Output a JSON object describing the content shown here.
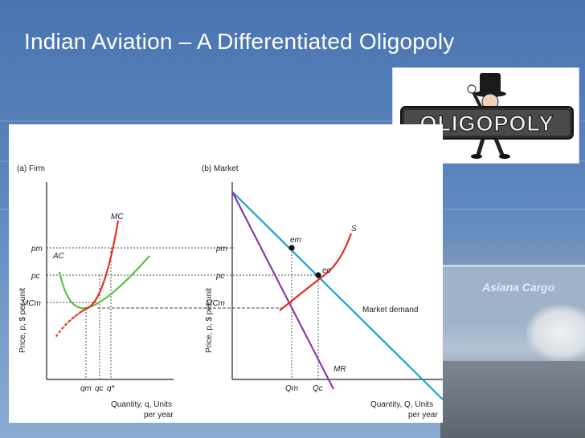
{
  "slide": {
    "title": "Indian Aviation – A Differentiated Oligopoly",
    "background_color": "#5b84bd"
  },
  "logo": {
    "text": "OLIGOPOLY",
    "icon": "top-hat-mascot-icon"
  },
  "background_photo": {
    "signage": "Asiana Cargo"
  },
  "figure": {
    "firm_panel": {
      "panel_label": "(a) Firm",
      "y_axis_label": "Price, p, $ per unit",
      "x_axis_label_line1": "Quantity, q, Units",
      "x_axis_label_line2": "per year",
      "price_ticks": {
        "pm": "pm",
        "pc": "pc",
        "MCm": "MCm"
      },
      "quantity_ticks": {
        "qm": "qm",
        "qc": "qc",
        "qstar": "q*"
      },
      "curves": {
        "mc": "MC",
        "ac": "AC"
      }
    },
    "market_panel": {
      "panel_label": "(b) Market",
      "y_axis_label": "Price, p, $ per unit",
      "x_axis_label_line1": "Quantity, Q, Units",
      "x_axis_label_line2": "per year",
      "price_ticks": {
        "pm": "pm",
        "pc": "pc",
        "MCm": "MCm"
      },
      "quantity_ticks": {
        "Qm": "Qm",
        "Qc": "Qc"
      },
      "curves": {
        "supply": "S",
        "demand": "Market demand",
        "mr": "MR"
      },
      "points": {
        "em": "em",
        "ec": "ec"
      }
    },
    "colors": {
      "mc": "#e03020",
      "ac": "#5cc040",
      "demand": "#1aa0dc",
      "mr": "#8a3aa8",
      "supply": "#e03020"
    }
  }
}
